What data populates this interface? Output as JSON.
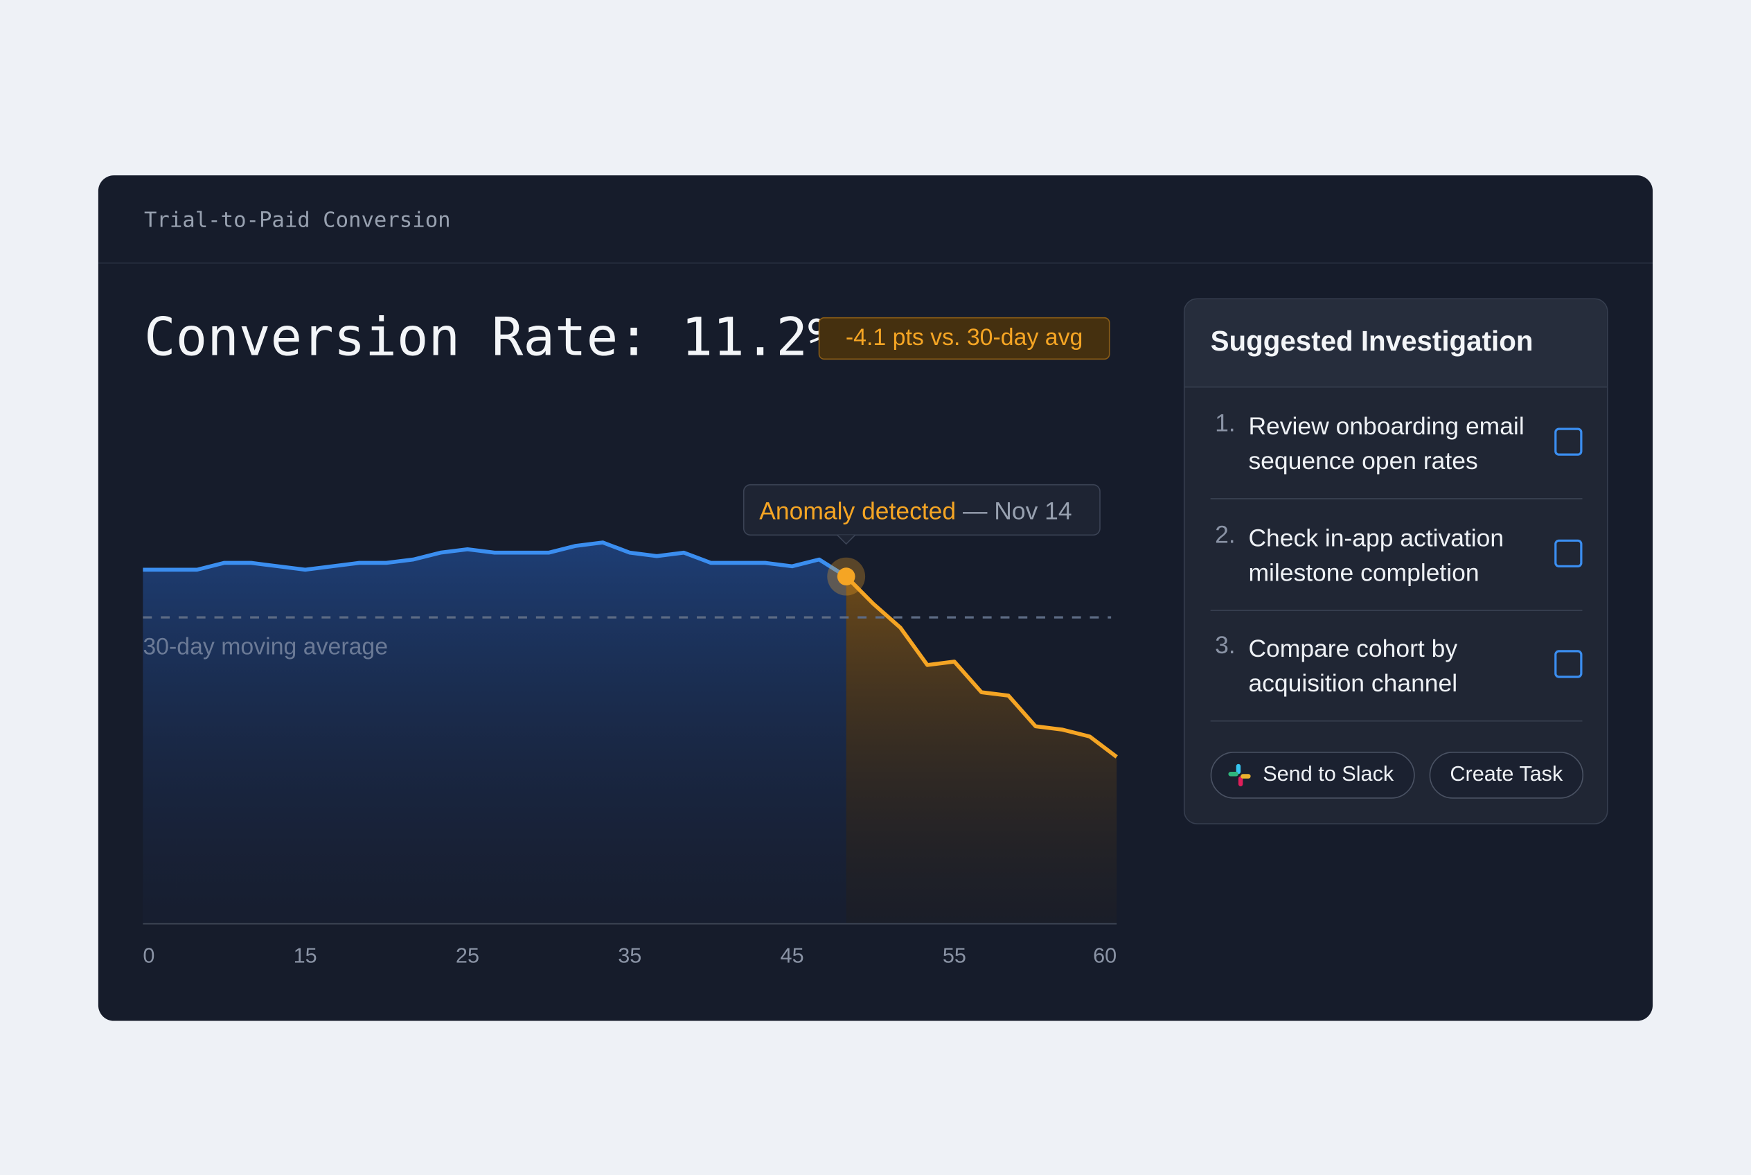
{
  "header": {
    "title": "Trial-to-Paid Conversion"
  },
  "headline": "Conversion Rate: 11.2%",
  "badge": "-4.1 pts vs. 30-day avg",
  "chart_data": {
    "type": "line",
    "x_labels": [
      "0",
      "15",
      "25",
      "35",
      "45",
      "55",
      "60"
    ],
    "series": [
      {
        "color": "#3b8ef0",
        "values": [
          16.7,
          16.7,
          16.7,
          16.9,
          16.9,
          16.8,
          16.7,
          16.8,
          16.9,
          16.9,
          17.0,
          17.2,
          17.3,
          17.2,
          17.2,
          17.2,
          17.4,
          17.5,
          17.2,
          17.1,
          17.2,
          16.9,
          16.9,
          16.9,
          16.8,
          17.0,
          16.5,
          null,
          null,
          null,
          null,
          null,
          null,
          null,
          null,
          null,
          null
        ]
      },
      {
        "color": "#f5a524",
        "values": [
          null,
          null,
          null,
          null,
          null,
          null,
          null,
          null,
          null,
          null,
          null,
          null,
          null,
          null,
          null,
          null,
          null,
          null,
          null,
          null,
          null,
          null,
          null,
          null,
          null,
          null,
          16.5,
          15.7,
          15.0,
          13.9,
          14.0,
          13.1,
          13.0,
          12.1,
          12.0,
          11.8,
          11.2
        ]
      }
    ],
    "ylim": [
      6.3,
      21
    ],
    "average": 15.3,
    "average_label": "30-day moving average",
    "anomaly": {
      "label": "Anomaly detected",
      "date": "— Nov 14"
    }
  },
  "panel": {
    "title": "Suggested Investigation",
    "items": [
      {
        "number": "1.",
        "text": "Review onboarding email sequence open rates"
      },
      {
        "number": "2.",
        "text": "Check in-app activation milestone completion"
      },
      {
        "number": "3.",
        "text": "Compare cohort by acquisition channel"
      }
    ],
    "buttons": [
      "Send to Slack",
      "Create Task"
    ]
  }
}
